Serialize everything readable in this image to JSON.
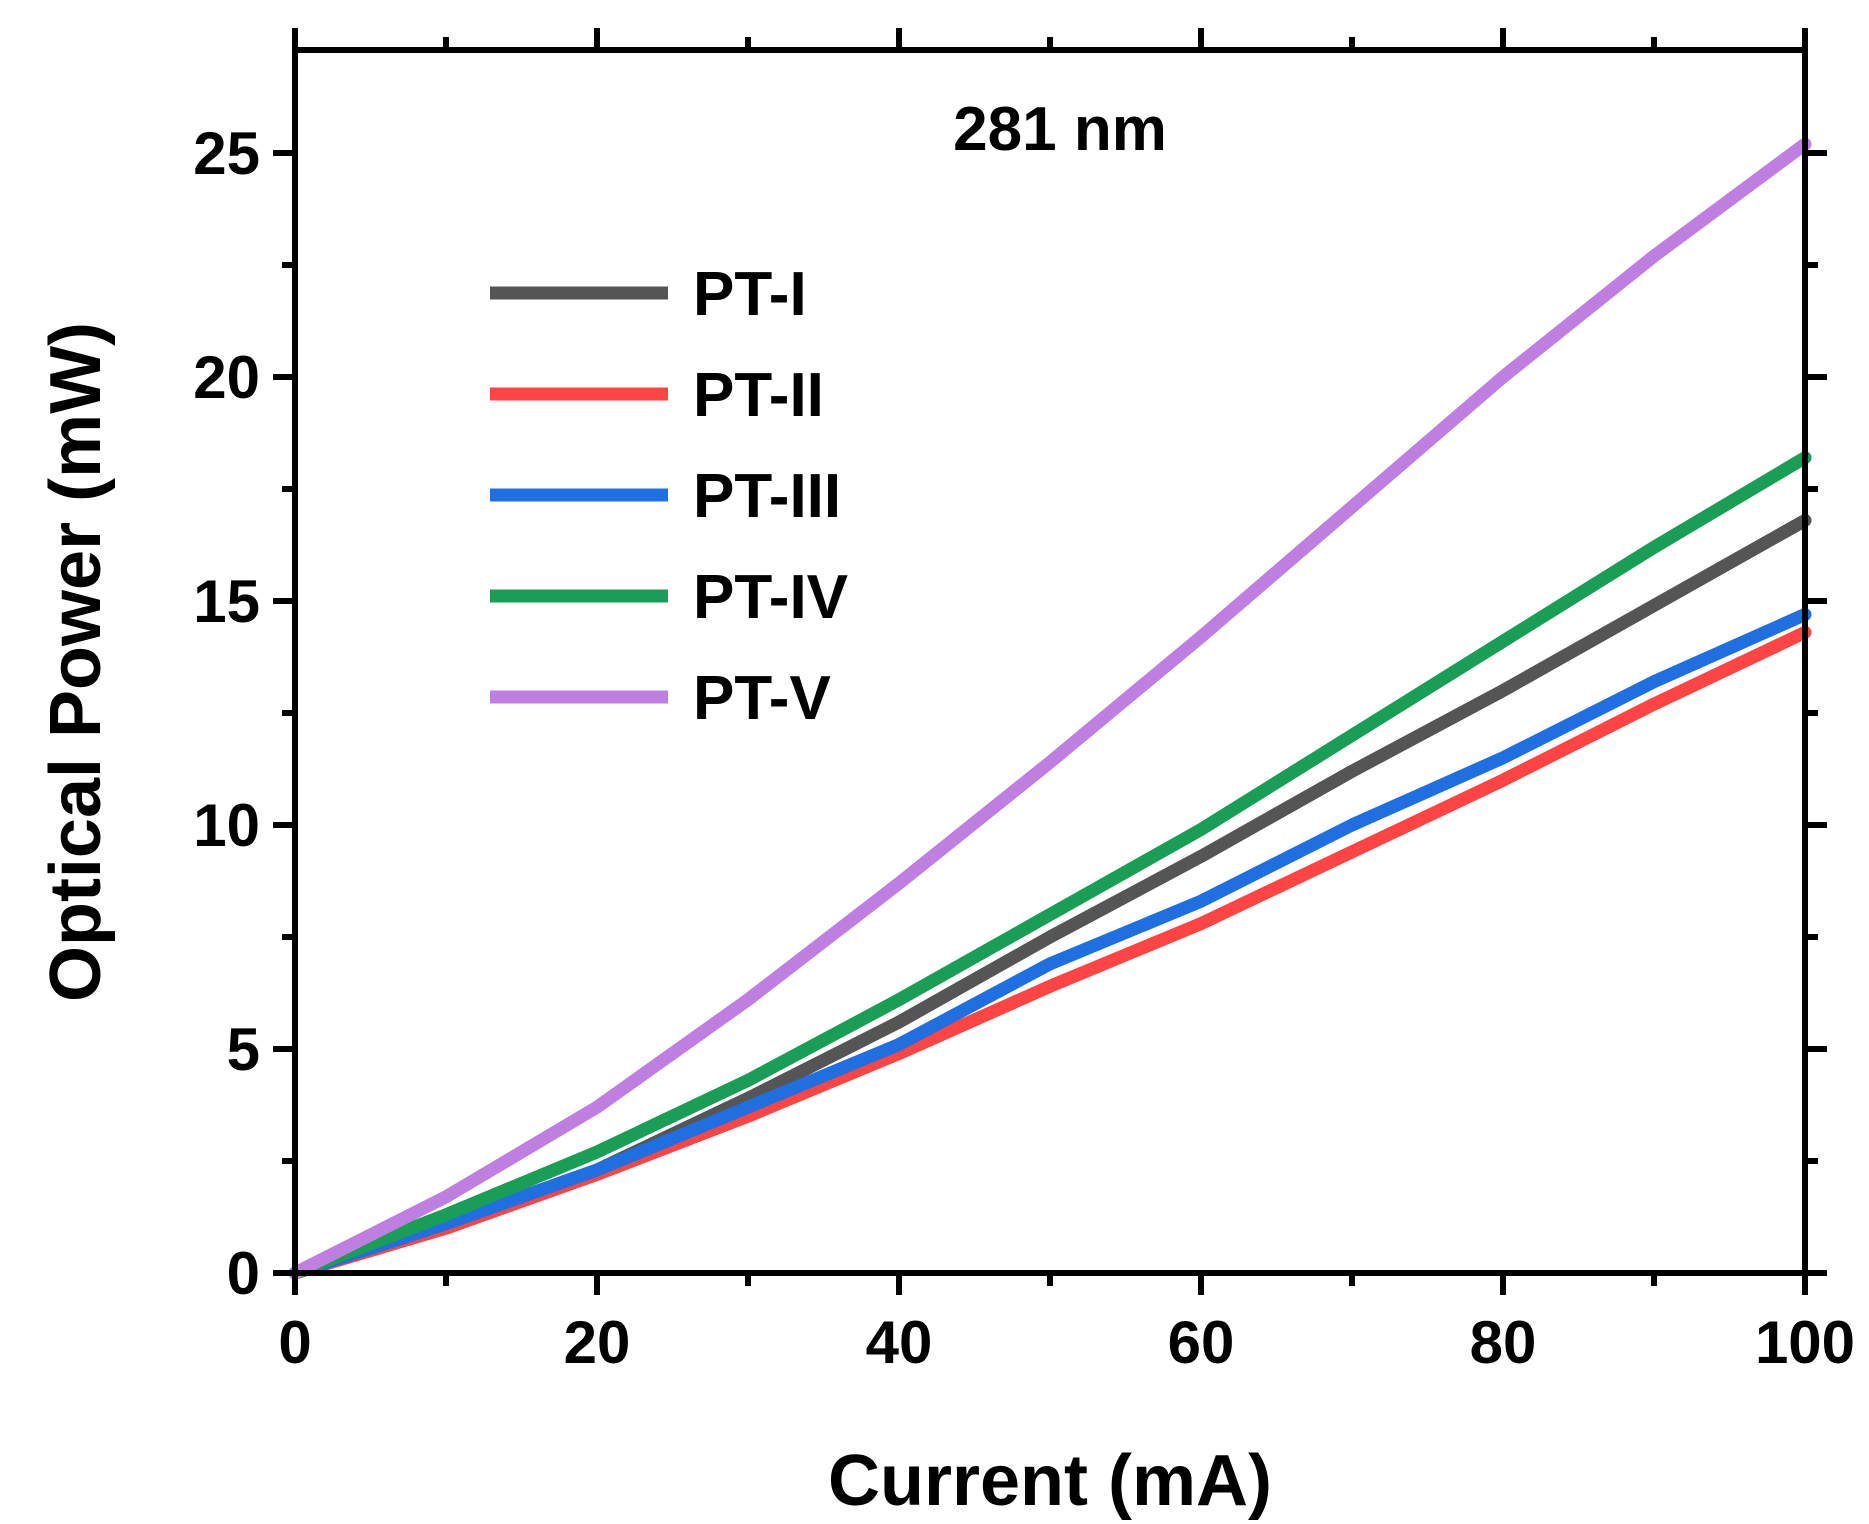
{
  "chart_data": {
    "type": "line",
    "annotation": "281 nm",
    "xlabel": "Current (mA)",
    "ylabel": "Optical Power (mW)",
    "xlim": [
      0,
      100
    ],
    "ylim": [
      0,
      27.3
    ],
    "xticks": [
      0,
      20,
      40,
      60,
      80,
      100
    ],
    "yticks": [
      0,
      5,
      10,
      15,
      20,
      25
    ],
    "x_minor_step": 10,
    "y_minor_step": 2.5,
    "grid": false,
    "legend_position": "upper-left",
    "series": [
      {
        "name": "PT-I",
        "color": "#555555",
        "x": [
          0,
          10,
          20,
          30,
          40,
          50,
          60,
          70,
          80,
          90,
          100
        ],
        "y": [
          0,
          1.1,
          2.3,
          3.9,
          5.6,
          7.5,
          9.3,
          11.2,
          13.0,
          14.9,
          16.8
        ]
      },
      {
        "name": "PT-II",
        "color": "#ff4444",
        "x": [
          0,
          10,
          20,
          30,
          40,
          50,
          60,
          70,
          80,
          90,
          100
        ],
        "y": [
          0,
          1.0,
          2.2,
          3.5,
          4.9,
          6.4,
          7.8,
          9.4,
          11.0,
          12.7,
          14.3
        ]
      },
      {
        "name": "PT-III",
        "color": "#1f6fe0",
        "x": [
          0,
          10,
          20,
          30,
          40,
          50,
          60,
          70,
          80,
          90,
          100
        ],
        "y": [
          0,
          1.1,
          2.3,
          3.7,
          5.1,
          6.9,
          8.3,
          10.0,
          11.5,
          13.2,
          14.7
        ]
      },
      {
        "name": "PT-IV",
        "color": "#1a9e55",
        "x": [
          0,
          10,
          20,
          30,
          40,
          50,
          60,
          70,
          80,
          90,
          100
        ],
        "y": [
          0,
          1.3,
          2.7,
          4.3,
          6.1,
          8.0,
          9.9,
          12.0,
          14.1,
          16.2,
          18.2
        ]
      },
      {
        "name": "PT-V",
        "color": "#bf7fe0",
        "x": [
          0,
          10,
          20,
          30,
          40,
          50,
          60,
          70,
          80,
          90,
          100
        ],
        "y": [
          0,
          1.7,
          3.7,
          6.1,
          8.7,
          11.4,
          14.2,
          17.1,
          20.0,
          22.7,
          25.2
        ]
      }
    ]
  }
}
